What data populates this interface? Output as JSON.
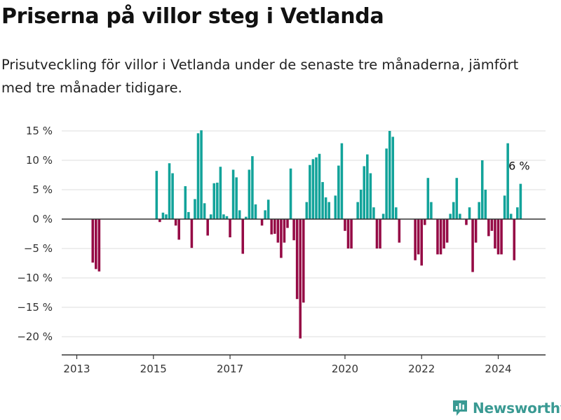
{
  "header": {
    "title": "Priserna på villor steg i Vetlanda",
    "subtitle": "Prisutveckling för villor i Vetlanda under de senaste tre månaderna, jämfört med tre månader tidigare."
  },
  "brand": {
    "name": "Newsworthy",
    "logo_icon": "newsworthy-logo-icon"
  },
  "colors": {
    "positive": "#12a39a",
    "negative": "#950a45",
    "grid": "#e3e3e3",
    "axis": "#333333"
  },
  "chart_data": {
    "type": "bar",
    "title": "",
    "xlabel": "",
    "ylabel": "",
    "x_start": "2013-01",
    "frequency": "monthly",
    "ylim": [
      -23,
      16.5
    ],
    "y_ticks": [
      15,
      10,
      5,
      0,
      -5,
      -10,
      -15,
      -20
    ],
    "y_tick_labels": [
      "15 %",
      "10 %",
      "5 %",
      "0 %",
      "−5 %",
      "−10 %",
      "−15 %",
      "−20 %"
    ],
    "x_ticks": [
      "2013-01",
      "2015-01",
      "2017-01",
      "2020-01",
      "2022-01",
      "2024-01"
    ],
    "x_tick_labels": [
      "2013",
      "2015",
      "2017",
      "2020",
      "2022",
      "2024"
    ],
    "grid": true,
    "legend": "none",
    "values": [
      null,
      null,
      null,
      null,
      null,
      -7.4,
      -8.5,
      -8.9,
      null,
      null,
      null,
      null,
      null,
      null,
      null,
      null,
      null,
      null,
      null,
      null,
      null,
      null,
      null,
      null,
      null,
      8.2,
      -0.5,
      1.1,
      0.8,
      9.5,
      7.8,
      -1.1,
      -3.5,
      null,
      5.6,
      1.2,
      -4.9,
      3.4,
      14.6,
      15.1,
      2.7,
      -2.8,
      0.8,
      6.1,
      6.2,
      8.9,
      0.8,
      0.5,
      -3.1,
      8.4,
      7.1,
      1.5,
      -5.9,
      0.4,
      8.4,
      10.7,
      2.5,
      null,
      -1.1,
      1.5,
      3.3,
      -2.6,
      -2.5,
      -4.0,
      -6.6,
      -4.0,
      -1.5,
      8.6,
      -3.6,
      -13.6,
      -20.3,
      -14.2,
      2.9,
      9.2,
      10.2,
      10.5,
      11.1,
      6.3,
      3.7,
      2.9,
      null,
      4.0,
      9.1,
      12.9,
      -2.0,
      -5.0,
      -5.0,
      null,
      2.9,
      5.0,
      9.0,
      11.0,
      7.8,
      2.0,
      -5.0,
      -5.0,
      0.9,
      12.0,
      15.0,
      14.0,
      2.0,
      -4.0,
      null,
      null,
      null,
      null,
      -7.0,
      -6.0,
      -7.9,
      -1.0,
      7.0,
      2.9,
      null,
      -6.0,
      -6.0,
      -5.0,
      -4.0,
      0.9,
      2.9,
      7.0,
      0.9,
      null,
      -1.0,
      2.0,
      -9.0,
      -4.0,
      2.9,
      10.0,
      5.0,
      -2.9,
      -2.0,
      -5.0,
      -6.0,
      -6.0,
      4.0,
      12.9,
      0.9,
      -7.0,
      2.0,
      6.0
    ],
    "annotations": [
      {
        "text": "6 %",
        "x": "2024-08",
        "y": 6.0
      }
    ]
  }
}
